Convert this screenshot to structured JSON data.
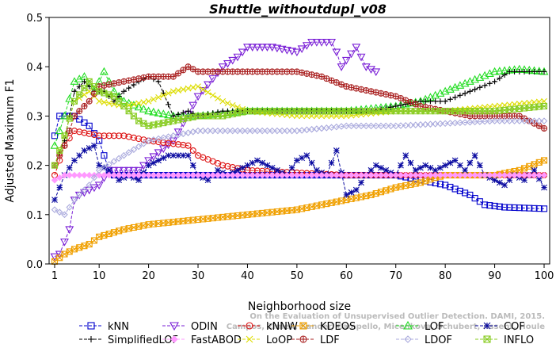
{
  "chart_data": {
    "type": "line",
    "title": "Shuttle_withoutdupl_v08",
    "xlabel": "Neighborhood size",
    "ylabel": "Adjusted Maximum F1",
    "xlim": [
      1,
      100
    ],
    "ylim": [
      0,
      0.5
    ],
    "x_ticks": [
      1,
      10,
      20,
      30,
      40,
      50,
      60,
      70,
      80,
      90,
      100
    ],
    "y_ticks": [
      0.0,
      0.1,
      0.2,
      0.3,
      0.4,
      0.5
    ],
    "x_tick_labels": [
      "1",
      "10",
      "20",
      "30",
      "40",
      "50",
      "60",
      "70",
      "80",
      "90",
      "100"
    ],
    "y_tick_labels": [
      "0.0",
      "0.1",
      "0.2",
      "0.3",
      "0.4",
      "0.5"
    ],
    "grid": false,
    "legend_position": "bottom",
    "watermark": [
      "Campos, Zimek, Sander, Campello, Micenkova, Schubert, Assent, Houle",
      "On the Evaluation of Unsupervised Outlier Detection. DAMI, 2015."
    ],
    "series": [
      {
        "name": "kNN",
        "color": "#0000cc",
        "marker": "square",
        "knots": [
          [
            1,
            0.26
          ],
          [
            2,
            0.3
          ],
          [
            5,
            0.3
          ],
          [
            8,
            0.28
          ],
          [
            10,
            0.25
          ],
          [
            12,
            0.19
          ],
          [
            13,
            0.18
          ],
          [
            70,
            0.18
          ],
          [
            75,
            0.17
          ],
          [
            80,
            0.16
          ],
          [
            85,
            0.14
          ],
          [
            88,
            0.12
          ],
          [
            92,
            0.115
          ],
          [
            100,
            0.112
          ]
        ]
      },
      {
        "name": "ODIN",
        "color": "#7a1fd6",
        "marker": "triangle-down",
        "knots": [
          [
            1,
            0.015
          ],
          [
            2,
            0.02
          ],
          [
            4,
            0.07
          ],
          [
            5,
            0.13
          ],
          [
            6,
            0.14
          ],
          [
            8,
            0.15
          ],
          [
            10,
            0.16
          ],
          [
            12,
            0.19
          ],
          [
            18,
            0.19
          ],
          [
            20,
            0.21
          ],
          [
            25,
            0.25
          ],
          [
            30,
            0.34
          ],
          [
            35,
            0.4
          ],
          [
            38,
            0.42
          ],
          [
            40,
            0.44
          ],
          [
            45,
            0.44
          ],
          [
            50,
            0.43
          ],
          [
            53,
            0.45
          ],
          [
            57,
            0.45
          ],
          [
            58,
            0.43
          ],
          [
            59,
            0.4
          ],
          [
            62,
            0.44
          ],
          [
            63,
            0.42
          ],
          [
            64,
            0.4
          ],
          [
            66,
            0.39
          ]
        ]
      },
      {
        "name": "kNNW",
        "color": "#dd1111",
        "marker": "circle",
        "knots": [
          [
            1,
            0.18
          ],
          [
            3,
            0.24
          ],
          [
            5,
            0.27
          ],
          [
            10,
            0.26
          ],
          [
            15,
            0.26
          ],
          [
            20,
            0.25
          ],
          [
            28,
            0.24
          ],
          [
            30,
            0.22
          ],
          [
            35,
            0.2
          ],
          [
            40,
            0.19
          ],
          [
            50,
            0.185
          ],
          [
            60,
            0.18
          ],
          [
            70,
            0.18
          ],
          [
            80,
            0.18
          ],
          [
            100,
            0.18
          ]
        ]
      },
      {
        "name": "KDEOS",
        "color": "#f0a000",
        "marker": "square-x",
        "knots": [
          [
            1,
            0.005
          ],
          [
            3,
            0.02
          ],
          [
            5,
            0.03
          ],
          [
            8,
            0.04
          ],
          [
            10,
            0.055
          ],
          [
            15,
            0.07
          ],
          [
            20,
            0.08
          ],
          [
            25,
            0.085
          ],
          [
            30,
            0.09
          ],
          [
            40,
            0.1
          ],
          [
            50,
            0.11
          ],
          [
            55,
            0.12
          ],
          [
            60,
            0.13
          ],
          [
            65,
            0.14
          ],
          [
            70,
            0.155
          ],
          [
            75,
            0.165
          ],
          [
            78,
            0.175
          ],
          [
            80,
            0.18
          ],
          [
            85,
            0.18
          ],
          [
            90,
            0.18
          ],
          [
            95,
            0.19
          ],
          [
            100,
            0.21
          ]
        ]
      },
      {
        "name": "LOF",
        "color": "#22dd22",
        "marker": "triangle",
        "knots": [
          [
            1,
            0.24
          ],
          [
            3,
            0.3
          ],
          [
            5,
            0.37
          ],
          [
            7,
            0.38
          ],
          [
            9,
            0.35
          ],
          [
            11,
            0.39
          ],
          [
            13,
            0.35
          ],
          [
            15,
            0.33
          ],
          [
            20,
            0.31
          ],
          [
            25,
            0.3
          ],
          [
            30,
            0.3
          ],
          [
            40,
            0.31
          ],
          [
            50,
            0.31
          ],
          [
            60,
            0.31
          ],
          [
            70,
            0.32
          ],
          [
            75,
            0.33
          ],
          [
            80,
            0.35
          ],
          [
            85,
            0.37
          ],
          [
            90,
            0.39
          ],
          [
            95,
            0.395
          ],
          [
            100,
            0.39
          ]
        ]
      },
      {
        "name": "COF",
        "color": "#0a0aa0",
        "marker": "star",
        "knots": [
          [
            1,
            0.13
          ],
          [
            3,
            0.18
          ],
          [
            5,
            0.21
          ],
          [
            7,
            0.23
          ],
          [
            9,
            0.24
          ],
          [
            10,
            0.2
          ],
          [
            12,
            0.19
          ],
          [
            14,
            0.17
          ],
          [
            16,
            0.18
          ],
          [
            18,
            0.17
          ],
          [
            20,
            0.2
          ],
          [
            22,
            0.21
          ],
          [
            24,
            0.22
          ],
          [
            26,
            0.22
          ],
          [
            28,
            0.22
          ],
          [
            30,
            0.18
          ],
          [
            32,
            0.17
          ],
          [
            34,
            0.19
          ],
          [
            36,
            0.18
          ],
          [
            38,
            0.19
          ],
          [
            40,
            0.2
          ],
          [
            42,
            0.21
          ],
          [
            44,
            0.2
          ],
          [
            46,
            0.19
          ],
          [
            48,
            0.18
          ],
          [
            50,
            0.21
          ],
          [
            52,
            0.22
          ],
          [
            54,
            0.19
          ],
          [
            56,
            0.18
          ],
          [
            58,
            0.23
          ],
          [
            60,
            0.14
          ],
          [
            62,
            0.15
          ],
          [
            64,
            0.18
          ],
          [
            66,
            0.2
          ],
          [
            68,
            0.19
          ],
          [
            70,
            0.18
          ],
          [
            72,
            0.22
          ],
          [
            74,
            0.19
          ],
          [
            76,
            0.2
          ],
          [
            78,
            0.19
          ],
          [
            80,
            0.2
          ],
          [
            82,
            0.21
          ],
          [
            84,
            0.19
          ],
          [
            86,
            0.22
          ],
          [
            88,
            0.18
          ],
          [
            90,
            0.17
          ],
          [
            92,
            0.16
          ],
          [
            94,
            0.18
          ],
          [
            96,
            0.17
          ],
          [
            98,
            0.19
          ],
          [
            100,
            0.155
          ]
        ]
      },
      {
        "name": "SimplifiedLOF",
        "color": "#000000",
        "marker": "plus",
        "knots": [
          [
            1,
            0.2
          ],
          [
            3,
            0.25
          ],
          [
            5,
            0.35
          ],
          [
            7,
            0.37
          ],
          [
            9,
            0.35
          ],
          [
            11,
            0.35
          ],
          [
            13,
            0.33
          ],
          [
            15,
            0.35
          ],
          [
            18,
            0.37
          ],
          [
            20,
            0.38
          ],
          [
            22,
            0.37
          ],
          [
            25,
            0.3
          ],
          [
            28,
            0.31
          ],
          [
            30,
            0.3
          ],
          [
            35,
            0.31
          ],
          [
            40,
            0.31
          ],
          [
            45,
            0.31
          ],
          [
            50,
            0.31
          ],
          [
            55,
            0.31
          ],
          [
            60,
            0.31
          ],
          [
            65,
            0.31
          ],
          [
            70,
            0.32
          ],
          [
            75,
            0.33
          ],
          [
            80,
            0.33
          ],
          [
            85,
            0.35
          ],
          [
            90,
            0.37
          ],
          [
            93,
            0.39
          ],
          [
            100,
            0.39
          ]
        ]
      },
      {
        "name": "FastABOD",
        "color": "#ff99ff",
        "marker": "diamond",
        "knots": [
          [
            1,
            0.17
          ],
          [
            3,
            0.18
          ],
          [
            5,
            0.18
          ],
          [
            10,
            0.18
          ],
          [
            20,
            0.18
          ],
          [
            40,
            0.18
          ],
          [
            60,
            0.18
          ],
          [
            80,
            0.18
          ],
          [
            100,
            0.18
          ]
        ]
      },
      {
        "name": "LoOP",
        "color": "#dddd00",
        "marker": "x",
        "knots": [
          [
            1,
            0.2
          ],
          [
            3,
            0.26
          ],
          [
            5,
            0.33
          ],
          [
            8,
            0.35
          ],
          [
            10,
            0.33
          ],
          [
            15,
            0.32
          ],
          [
            20,
            0.33
          ],
          [
            25,
            0.35
          ],
          [
            30,
            0.36
          ],
          [
            35,
            0.33
          ],
          [
            40,
            0.31
          ],
          [
            50,
            0.3
          ],
          [
            60,
            0.3
          ],
          [
            70,
            0.31
          ],
          [
            80,
            0.31
          ],
          [
            90,
            0.32
          ],
          [
            100,
            0.33
          ]
        ]
      },
      {
        "name": "LDF",
        "color": "#aa2222",
        "marker": "circle-plus",
        "knots": [
          [
            1,
            0.2
          ],
          [
            3,
            0.24
          ],
          [
            5,
            0.3
          ],
          [
            8,
            0.33
          ],
          [
            10,
            0.36
          ],
          [
            15,
            0.37
          ],
          [
            20,
            0.38
          ],
          [
            25,
            0.38
          ],
          [
            28,
            0.4
          ],
          [
            30,
            0.39
          ],
          [
            35,
            0.39
          ],
          [
            40,
            0.39
          ],
          [
            50,
            0.39
          ],
          [
            55,
            0.38
          ],
          [
            60,
            0.36
          ],
          [
            65,
            0.35
          ],
          [
            70,
            0.34
          ],
          [
            75,
            0.32
          ],
          [
            80,
            0.31
          ],
          [
            85,
            0.3
          ],
          [
            90,
            0.3
          ],
          [
            95,
            0.3
          ],
          [
            100,
            0.275
          ]
        ]
      },
      {
        "name": "LDOF",
        "color": "#aaaadd",
        "marker": "diamond-open",
        "knots": [
          [
            1,
            0.11
          ],
          [
            3,
            0.1
          ],
          [
            5,
            0.13
          ],
          [
            8,
            0.16
          ],
          [
            10,
            0.19
          ],
          [
            15,
            0.22
          ],
          [
            20,
            0.25
          ],
          [
            25,
            0.26
          ],
          [
            30,
            0.27
          ],
          [
            40,
            0.27
          ],
          [
            50,
            0.27
          ],
          [
            60,
            0.28
          ],
          [
            70,
            0.28
          ],
          [
            80,
            0.285
          ],
          [
            90,
            0.29
          ],
          [
            100,
            0.29
          ]
        ]
      },
      {
        "name": "INFLO",
        "color": "#88cc22",
        "marker": "square-star",
        "knots": [
          [
            1,
            0.2
          ],
          [
            3,
            0.26
          ],
          [
            5,
            0.33
          ],
          [
            8,
            0.37
          ],
          [
            10,
            0.35
          ],
          [
            13,
            0.34
          ],
          [
            15,
            0.32
          ],
          [
            18,
            0.29
          ],
          [
            20,
            0.28
          ],
          [
            25,
            0.29
          ],
          [
            30,
            0.3
          ],
          [
            35,
            0.3
          ],
          [
            40,
            0.31
          ],
          [
            50,
            0.31
          ],
          [
            60,
            0.31
          ],
          [
            70,
            0.31
          ],
          [
            80,
            0.31
          ],
          [
            90,
            0.31
          ],
          [
            100,
            0.32
          ]
        ]
      }
    ]
  }
}
